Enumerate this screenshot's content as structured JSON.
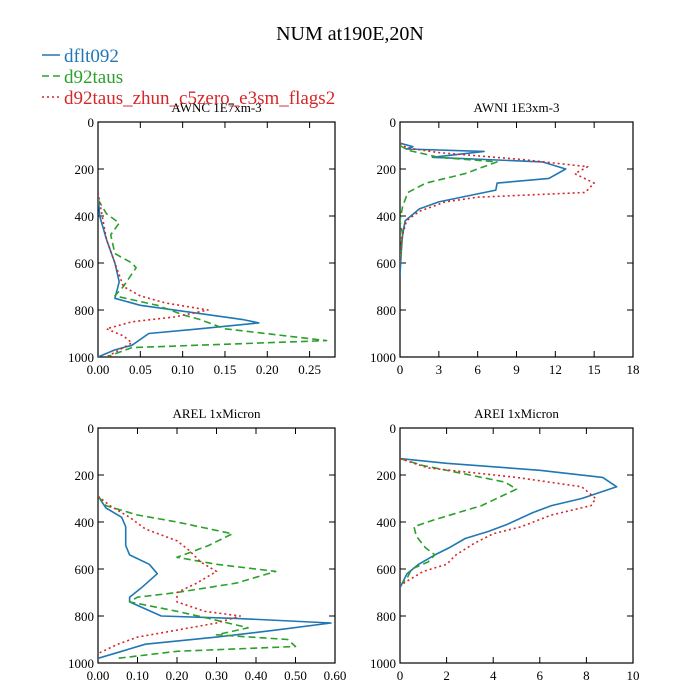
{
  "figure_title": "NUM at190E,20N",
  "legend": [
    {
      "label": "dflt092",
      "color": "#1f77b4",
      "dash": "solid"
    },
    {
      "label": "d92taus",
      "color": "#2ca02c",
      "dash": "dash"
    },
    {
      "label": "d92taus_zhun_c5zero_e3sm_flags2",
      "color": "#d62728",
      "dash": "dot"
    }
  ],
  "chart_data": [
    {
      "type": "line",
      "title": "AWNC 1E7xm-3",
      "xlabel": "",
      "ylabel": "",
      "xlim": [
        0,
        0.28
      ],
      "ylim": [
        1000,
        0
      ],
      "y_inverted": true,
      "xticks": [
        0.0,
        0.05,
        0.1,
        0.15,
        0.2,
        0.25
      ],
      "xtick_labels": [
        "0.00",
        "0.05",
        "0.10",
        "0.15",
        "0.20",
        "0.25"
      ],
      "yticks": [
        0,
        200,
        400,
        600,
        800,
        1000
      ],
      "ytick_labels": [
        "0",
        "200",
        "400",
        "600",
        "800",
        "1000"
      ],
      "series": [
        {
          "name": "dflt092",
          "points": [
            [
              0.0,
              300
            ],
            [
              0.002,
              400
            ],
            [
              0.01,
              500
            ],
            [
              0.015,
              550
            ],
            [
              0.02,
              600
            ],
            [
              0.025,
              680
            ],
            [
              0.02,
              750
            ],
            [
              0.05,
              780
            ],
            [
              0.13,
              820
            ],
            [
              0.17,
              840
            ],
            [
              0.19,
              855
            ],
            [
              0.12,
              880
            ],
            [
              0.06,
              900
            ],
            [
              0.04,
              950
            ],
            [
              0.02,
              970
            ],
            [
              0.0,
              1000
            ]
          ]
        },
        {
          "name": "d92taus",
          "points": [
            [
              0.0,
              330
            ],
            [
              0.01,
              390
            ],
            [
              0.025,
              430
            ],
            [
              0.015,
              480
            ],
            [
              0.02,
              560
            ],
            [
              0.04,
              600
            ],
            [
              0.045,
              620
            ],
            [
              0.03,
              700
            ],
            [
              0.02,
              740
            ],
            [
              0.07,
              780
            ],
            [
              0.1,
              820
            ],
            [
              0.12,
              840
            ],
            [
              0.15,
              880
            ],
            [
              0.27,
              930
            ],
            [
              0.04,
              960
            ],
            [
              0.01,
              1000
            ]
          ]
        },
        {
          "name": "d92taus_zhun_c5zero_e3sm_flags2",
          "points": [
            [
              0.0,
              300
            ],
            [
              0.005,
              400
            ],
            [
              0.01,
              500
            ],
            [
              0.02,
              600
            ],
            [
              0.03,
              700
            ],
            [
              0.05,
              740
            ],
            [
              0.08,
              770
            ],
            [
              0.13,
              800
            ],
            [
              0.09,
              830
            ],
            [
              0.04,
              850
            ],
            [
              0.01,
              880
            ],
            [
              0.03,
              910
            ],
            [
              0.04,
              940
            ],
            [
              0.01,
              1000
            ]
          ]
        }
      ]
    },
    {
      "type": "line",
      "title": "AWNI 1E3xm-3",
      "xlabel": "",
      "ylabel": "",
      "xlim": [
        0,
        18
      ],
      "ylim": [
        1000,
        0
      ],
      "y_inverted": true,
      "xticks": [
        0,
        3,
        6,
        9,
        12,
        15,
        18
      ],
      "xtick_labels": [
        "0",
        "3",
        "6",
        "9",
        "12",
        "15",
        "18"
      ],
      "yticks": [
        0,
        200,
        400,
        600,
        800,
        1000
      ],
      "ytick_labels": [
        "0",
        "200",
        "400",
        "600",
        "800",
        "1000"
      ],
      "series": [
        {
          "name": "dflt092",
          "points": [
            [
              0.0,
              90
            ],
            [
              1.0,
              105
            ],
            [
              0.5,
              115
            ],
            [
              6.5,
              125
            ],
            [
              2.5,
              150
            ],
            [
              11.0,
              170
            ],
            [
              12.8,
              200
            ],
            [
              11.5,
              240
            ],
            [
              7.5,
              260
            ],
            [
              7.4,
              290
            ],
            [
              3.0,
              340
            ],
            [
              1.5,
              370
            ],
            [
              0.4,
              420
            ],
            [
              0.2,
              480
            ],
            [
              0.1,
              550
            ],
            [
              0.0,
              650
            ]
          ]
        },
        {
          "name": "d92taus",
          "points": [
            [
              0.0,
              100
            ],
            [
              0.6,
              120
            ],
            [
              3.0,
              150
            ],
            [
              7.5,
              170
            ],
            [
              5.0,
              220
            ],
            [
              2.0,
              260
            ],
            [
              0.6,
              300
            ],
            [
              0.2,
              360
            ],
            [
              0.0,
              420
            ],
            [
              0.2,
              480
            ],
            [
              0.1,
              520
            ],
            [
              0.0,
              600
            ]
          ]
        },
        {
          "name": "d92taus_zhun_c5zero_e3sm_flags2",
          "points": [
            [
              0.0,
              90
            ],
            [
              0.5,
              110
            ],
            [
              3.0,
              130
            ],
            [
              9.5,
              160
            ],
            [
              14.5,
              190
            ],
            [
              13.5,
              220
            ],
            [
              15.0,
              260
            ],
            [
              14.3,
              300
            ],
            [
              6.0,
              320
            ],
            [
              3.5,
              340
            ],
            [
              1.5,
              380
            ],
            [
              0.5,
              420
            ],
            [
              0.1,
              500
            ],
            [
              0.0,
              600
            ]
          ]
        }
      ]
    },
    {
      "type": "line",
      "title": "AREL 1xMicron",
      "xlabel": "",
      "ylabel": "",
      "xlim": [
        0,
        0.6
      ],
      "ylim": [
        1000,
        0
      ],
      "y_inverted": true,
      "xticks": [
        0.0,
        0.1,
        0.2,
        0.3,
        0.4,
        0.5,
        0.6
      ],
      "xtick_labels": [
        "0.00",
        "0.10",
        "0.20",
        "0.30",
        "0.40",
        "0.50",
        "0.60"
      ],
      "yticks": [
        0,
        200,
        400,
        600,
        800,
        1000
      ],
      "ytick_labels": [
        "0",
        "200",
        "400",
        "600",
        "800",
        "1000"
      ],
      "series": [
        {
          "name": "dflt092",
          "points": [
            [
              0.0,
              290
            ],
            [
              0.02,
              340
            ],
            [
              0.06,
              380
            ],
            [
              0.07,
              420
            ],
            [
              0.07,
              500
            ],
            [
              0.08,
              540
            ],
            [
              0.13,
              580
            ],
            [
              0.15,
              620
            ],
            [
              0.11,
              680
            ],
            [
              0.08,
              720
            ],
            [
              0.08,
              740
            ],
            [
              0.16,
              800
            ],
            [
              0.35,
              810
            ],
            [
              0.59,
              830
            ],
            [
              0.45,
              860
            ],
            [
              0.3,
              890
            ],
            [
              0.12,
              920
            ],
            [
              0.06,
              950
            ],
            [
              0.0,
              980
            ]
          ]
        },
        {
          "name": "d92taus",
          "points": [
            [
              0.0,
              290
            ],
            [
              0.02,
              330
            ],
            [
              0.1,
              370
            ],
            [
              0.2,
              400
            ],
            [
              0.34,
              450
            ],
            [
              0.28,
              500
            ],
            [
              0.2,
              550
            ],
            [
              0.3,
              580
            ],
            [
              0.45,
              610
            ],
            [
              0.35,
              660
            ],
            [
              0.2,
              700
            ],
            [
              0.1,
              720
            ],
            [
              0.08,
              740
            ],
            [
              0.2,
              780
            ],
            [
              0.28,
              810
            ],
            [
              0.38,
              850
            ],
            [
              0.3,
              880
            ],
            [
              0.48,
              900
            ],
            [
              0.5,
              930
            ],
            [
              0.2,
              950
            ],
            [
              0.05,
              980
            ]
          ]
        },
        {
          "name": "d92taus_zhun_c5zero_e3sm_flags2",
          "points": [
            [
              0.0,
              290
            ],
            [
              0.03,
              330
            ],
            [
              0.08,
              380
            ],
            [
              0.12,
              430
            ],
            [
              0.2,
              480
            ],
            [
              0.23,
              520
            ],
            [
              0.26,
              570
            ],
            [
              0.3,
              610
            ],
            [
              0.25,
              660
            ],
            [
              0.2,
              700
            ],
            [
              0.2,
              740
            ],
            [
              0.27,
              780
            ],
            [
              0.36,
              800
            ],
            [
              0.3,
              830
            ],
            [
              0.2,
              860
            ],
            [
              0.1,
              890
            ],
            [
              0.05,
              920
            ],
            [
              0.0,
              960
            ]
          ]
        }
      ]
    },
    {
      "type": "line",
      "title": "AREI 1xMicron",
      "xlabel": "",
      "ylabel": "",
      "xlim": [
        0,
        10
      ],
      "ylim": [
        1000,
        0
      ],
      "y_inverted": true,
      "xticks": [
        0,
        2,
        4,
        6,
        8,
        10
      ],
      "xtick_labels": [
        "0",
        "2",
        "4",
        "6",
        "8",
        "10"
      ],
      "yticks": [
        0,
        200,
        400,
        600,
        800,
        1000
      ],
      "ytick_labels": [
        "0",
        "200",
        "400",
        "600",
        "800",
        "1000"
      ],
      "series": [
        {
          "name": "dflt092",
          "points": [
            [
              0.0,
              130
            ],
            [
              2.0,
              150
            ],
            [
              6.0,
              180
            ],
            [
              8.7,
              210
            ],
            [
              9.3,
              250
            ],
            [
              7.8,
              300
            ],
            [
              6.5,
              330
            ],
            [
              5.7,
              360
            ],
            [
              4.6,
              410
            ],
            [
              3.8,
              440
            ],
            [
              2.8,
              470
            ],
            [
              2.1,
              510
            ],
            [
              1.5,
              540
            ],
            [
              0.8,
              580
            ],
            [
              0.3,
              620
            ],
            [
              0.1,
              660
            ],
            [
              0.0,
              680
            ]
          ]
        },
        {
          "name": "d92taus",
          "points": [
            [
              0.0,
              130
            ],
            [
              1.0,
              160
            ],
            [
              3.0,
              200
            ],
            [
              4.5,
              230
            ],
            [
              5.0,
              260
            ],
            [
              3.5,
              330
            ],
            [
              1.5,
              390
            ],
            [
              0.6,
              420
            ],
            [
              0.7,
              460
            ],
            [
              1.1,
              510
            ],
            [
              1.5,
              540
            ],
            [
              1.2,
              570
            ],
            [
              0.5,
              600
            ],
            [
              0.3,
              640
            ],
            [
              0.1,
              660
            ]
          ]
        },
        {
          "name": "d92taus_zhun_c5zero_e3sm_flags2",
          "points": [
            [
              0.0,
              130
            ],
            [
              1.2,
              170
            ],
            [
              5.0,
              210
            ],
            [
              7.8,
              250
            ],
            [
              8.4,
              300
            ],
            [
              8.2,
              330
            ],
            [
              6.5,
              370
            ],
            [
              5.2,
              420
            ],
            [
              4.0,
              450
            ],
            [
              3.2,
              490
            ],
            [
              2.4,
              540
            ],
            [
              2.0,
              580
            ],
            [
              1.0,
              610
            ],
            [
              0.5,
              640
            ],
            [
              0.0,
              670
            ]
          ]
        }
      ]
    }
  ]
}
